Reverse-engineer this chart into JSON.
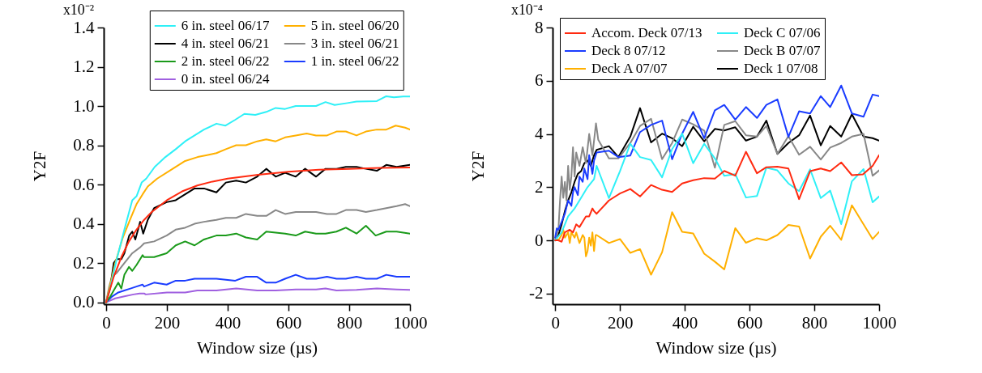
{
  "chart_data": [
    {
      "type": "line",
      "xlabel": "Window size (µs)",
      "ylabel": "Y2F",
      "xlim": [
        -8,
        1000
      ],
      "ylim": [
        -0.01,
        1.4
      ],
      "legend": "top right",
      "annotations": [
        "x10⁻²"
      ],
      "xticks": [
        0,
        200,
        400,
        600,
        800,
        1000
      ],
      "yticks": [
        {
          "value": 0,
          "label": "0.0"
        },
        0.2,
        0.4,
        0.6,
        0.8,
        {
          "value": 1,
          "label": "1.0"
        },
        1.2,
        1.4
      ],
      "series": [
        {
          "name": "6 in. steel 06/17",
          "color": "#2ff0f7",
          "x": [
            0,
            11,
            35,
            60,
            86,
            100,
            117,
            132,
            160,
            195,
            229,
            260,
            291,
            322,
            363,
            392,
            425,
            455,
            491,
            527,
            558,
            589,
            624,
            660,
            691,
            722,
            752,
            794,
            824,
            860,
            891,
            922,
            947,
            978,
            1000
          ],
          "values": [
            0,
            0.06,
            0.22,
            0.37,
            0.52,
            0.54,
            0.61,
            0.63,
            0.69,
            0.74,
            0.78,
            0.82,
            0.85,
            0.88,
            0.91,
            0.9,
            0.93,
            0.96,
            0.955,
            0.97,
            0.99,
            0.985,
            1.0,
            1.0,
            1.0,
            1.02,
            1.005,
            1.015,
            1.023,
            1.024,
            1.025,
            1.05,
            1.044,
            1.049,
            1.049
          ]
        },
        {
          "name": "5 in. steel 06/20",
          "color": "#ffb000",
          "x": [
            0,
            15,
            30,
            55,
            81,
            100,
            120,
            137,
            168,
            219,
            260,
            301,
            332,
            363,
            394,
            428,
            460,
            497,
            527,
            558,
            589,
            624,
            660,
            691,
            727,
            758,
            789,
            824,
            855,
            891,
            922,
            953,
            984,
            1000
          ],
          "values": [
            0,
            0.1,
            0.2,
            0.33,
            0.43,
            0.5,
            0.55,
            0.59,
            0.63,
            0.68,
            0.72,
            0.74,
            0.75,
            0.76,
            0.78,
            0.8,
            0.8,
            0.82,
            0.83,
            0.82,
            0.84,
            0.85,
            0.86,
            0.85,
            0.85,
            0.87,
            0.87,
            0.85,
            0.87,
            0.88,
            0.88,
            0.9,
            0.89,
            0.88
          ]
        },
        {
          "name": "4 in. steel 06/21",
          "color": "#000000",
          "x": [
            0,
            14,
            25,
            35,
            50,
            60,
            76,
            86,
            96,
            112,
            122,
            137,
            158,
            199,
            229,
            260,
            291,
            322,
            363,
            394,
            428,
            460,
            497,
            527,
            558,
            589,
            624,
            655,
            691,
            722,
            758,
            789,
            824,
            855,
            891,
            922,
            956,
            1000
          ],
          "values": [
            0,
            0.08,
            0.2,
            0.22,
            0.22,
            0.25,
            0.34,
            0.36,
            0.32,
            0.41,
            0.35,
            0.42,
            0.48,
            0.51,
            0.52,
            0.55,
            0.58,
            0.58,
            0.56,
            0.61,
            0.62,
            0.61,
            0.64,
            0.68,
            0.64,
            0.66,
            0.64,
            0.68,
            0.64,
            0.68,
            0.68,
            0.69,
            0.69,
            0.68,
            0.67,
            0.7,
            0.69,
            0.7
          ]
        },
        {
          "name": "3 in. steel 06/21",
          "color": "#888888",
          "x": [
            0,
            10,
            19,
            35,
            60,
            86,
            112,
            125,
            158,
            199,
            229,
            260,
            291,
            322,
            363,
            394,
            428,
            460,
            497,
            527,
            558,
            589,
            624,
            660,
            691,
            727,
            758,
            789,
            824,
            855,
            891,
            922,
            956,
            984,
            1000
          ],
          "values": [
            0,
            0.08,
            0.13,
            0.15,
            0.2,
            0.25,
            0.28,
            0.3,
            0.31,
            0.34,
            0.37,
            0.38,
            0.4,
            0.41,
            0.42,
            0.43,
            0.43,
            0.45,
            0.44,
            0.44,
            0.47,
            0.45,
            0.46,
            0.46,
            0.46,
            0.45,
            0.45,
            0.47,
            0.47,
            0.46,
            0.47,
            0.48,
            0.49,
            0.5,
            0.49
          ]
        },
        {
          "name": "2 in. steel 06/22",
          "color": "#1a9a1a",
          "x": [
            0,
            14,
            25,
            40,
            50,
            60,
            75,
            86,
            100,
            112,
            120,
            125,
            158,
            199,
            229,
            260,
            291,
            322,
            363,
            394,
            428,
            460,
            497,
            527,
            589,
            624,
            655,
            691,
            722,
            758,
            789,
            824,
            855,
            887,
            922,
            956,
            1000
          ],
          "values": [
            0,
            0.03,
            0.06,
            0.1,
            0.07,
            0.14,
            0.18,
            0.16,
            0.19,
            0.22,
            0.24,
            0.23,
            0.23,
            0.25,
            0.29,
            0.31,
            0.29,
            0.32,
            0.34,
            0.34,
            0.35,
            0.33,
            0.32,
            0.36,
            0.35,
            0.34,
            0.36,
            0.35,
            0.35,
            0.36,
            0.38,
            0.35,
            0.39,
            0.34,
            0.36,
            0.36,
            0.35
          ]
        },
        {
          "name": "1 in. steel 06/22",
          "color": "#1a3cff",
          "x": [
            0,
            20,
            40,
            60,
            80,
            100,
            120,
            125,
            158,
            199,
            229,
            260,
            291,
            363,
            425,
            460,
            497,
            527,
            558,
            589,
            624,
            660,
            691,
            727,
            758,
            789,
            824,
            855,
            891,
            922,
            956,
            1000
          ],
          "values": [
            0,
            0.03,
            0.05,
            0.06,
            0.07,
            0.08,
            0.09,
            0.08,
            0.1,
            0.09,
            0.11,
            0.11,
            0.12,
            0.12,
            0.11,
            0.13,
            0.13,
            0.1,
            0.1,
            0.12,
            0.14,
            0.12,
            0.12,
            0.13,
            0.12,
            0.12,
            0.13,
            0.12,
            0.12,
            0.14,
            0.13,
            0.13
          ]
        },
        {
          "name": "0 in. steel 06/24",
          "color": "#a060e0",
          "x": [
            0,
            30,
            60,
            90,
            110,
            125,
            130,
            200,
            260,
            300,
            363,
            428,
            497,
            558,
            624,
            691,
            722,
            758,
            824,
            891,
            956,
            1000
          ],
          "values": [
            0,
            0.02,
            0.03,
            0.04,
            0.045,
            0.045,
            0.04,
            0.05,
            0.05,
            0.06,
            0.06,
            0.07,
            0.06,
            0.06,
            0.065,
            0.065,
            0.07,
            0.06,
            0.063,
            0.07,
            0.065,
            0.063
          ]
        },
        {
          "color": "#ff2a10",
          "x": [
            0,
            25,
            50,
            75,
            100,
            125,
            150,
            200,
            250,
            300,
            350,
            400,
            500,
            600,
            700,
            800,
            900,
            1000
          ],
          "values": [
            0,
            0.13,
            0.23,
            0.31,
            0.37,
            0.42,
            0.46,
            0.52,
            0.565,
            0.595,
            0.615,
            0.63,
            0.65,
            0.665,
            0.675,
            0.68,
            0.685,
            0.687
          ]
        }
      ]
    },
    {
      "type": "line",
      "xlabel": "Window size (µs)",
      "ylabel": "Y2F",
      "xlim": [
        -8,
        1000
      ],
      "ylim": [
        -2.4,
        8
      ],
      "legend": "top left",
      "annotations": [
        "x10⁻⁴"
      ],
      "xticks": [
        0,
        200,
        400,
        600,
        800,
        1000
      ],
      "yticks": [
        -2,
        0,
        2,
        4,
        6,
        8
      ],
      "series": [
        {
          "name": "Accom. Deck 07/13",
          "color": "#ff2a10",
          "x": [
            0,
            10,
            20,
            30,
            45,
            55,
            65,
            75,
            85,
            95,
            105,
            115,
            120,
            128,
            166,
            200,
            232,
            262,
            296,
            330,
            361,
            392,
            426,
            460,
            493,
            522,
            556,
            589,
            623,
            652,
            686,
            720,
            753,
            787,
            820,
            849,
            883,
            916,
            950,
            980,
            1000
          ],
          "values": [
            0,
            0,
            -0.05,
            0.3,
            0.4,
            0.3,
            0.6,
            0.5,
            0.7,
            0.9,
            0.9,
            1.2,
            1.1,
            1.0,
            1.5,
            1.76,
            1.93,
            1.65,
            2.08,
            1.9,
            1.82,
            2.14,
            2.26,
            2.34,
            2.32,
            2.61,
            2.43,
            3.33,
            2.52,
            2.75,
            2.77,
            2.7,
            1.55,
            2.6,
            2.7,
            2.6,
            2.93,
            2.45,
            2.48,
            2.8,
            3.2
          ]
        },
        {
          "name": "Deck C 07/06",
          "color": "#2ff0f7",
          "x": [
            0,
            20,
            40,
            60,
            80,
            100,
            120,
            128,
            166,
            200,
            232,
            262,
            296,
            330,
            361,
            392,
            426,
            460,
            493,
            522,
            556,
            589,
            623,
            652,
            686,
            720,
            753,
            787,
            820,
            849,
            883,
            916,
            952,
            980,
            1000
          ],
          "values": [
            0,
            0.3,
            0.9,
            1.2,
            1.6,
            2.0,
            2.3,
            2.8,
            1.59,
            2.6,
            3.63,
            3.13,
            3.02,
            2.37,
            3.43,
            4.01,
            2.9,
            3.63,
            3.08,
            2.43,
            2.49,
            1.61,
            1.67,
            2.73,
            2.63,
            2.14,
            1.85,
            2.67,
            1.59,
            1.87,
            0.61,
            2.22,
            2.68,
            1.43,
            1.65
          ]
        },
        {
          "name": "Deck 8 07/12",
          "color": "#1a3cff",
          "x": [
            0,
            5,
            10,
            20,
            30,
            40,
            50,
            55,
            60,
            70,
            75,
            85,
            90,
            100,
            105,
            115,
            120,
            128,
            166,
            195,
            232,
            262,
            296,
            330,
            361,
            392,
            426,
            460,
            493,
            522,
            556,
            589,
            623,
            652,
            686,
            720,
            753,
            787,
            820,
            849,
            883,
            916,
            952,
            980,
            1000
          ],
          "values": [
            0.1,
            0.45,
            0.4,
            0.7,
            1.0,
            1.5,
            1.3,
            1.8,
            2.0,
            1.7,
            2.4,
            2.2,
            2.7,
            2.3,
            3.2,
            2.5,
            3.0,
            3.3,
            3.37,
            3.13,
            3.19,
            4.07,
            4.34,
            4.5,
            3.05,
            4.01,
            4.83,
            3.84,
            4.89,
            5.09,
            4.54,
            5.01,
            4.6,
            5.09,
            5.3,
            3.89,
            4.85,
            4.77,
            5.42,
            5.01,
            5.82,
            4.77,
            4.65,
            5.48,
            5.42
          ]
        },
        {
          "name": "Deck B 07/07",
          "color": "#888888",
          "x": [
            0,
            10,
            15,
            20,
            25,
            30,
            35,
            40,
            45,
            50,
            55,
            60,
            65,
            75,
            85,
            95,
            105,
            115,
            126,
            133,
            166,
            195,
            232,
            262,
            296,
            330,
            361,
            392,
            426,
            460,
            493,
            522,
            556,
            589,
            623,
            652,
            686,
            720,
            753,
            787,
            820,
            849,
            883,
            916,
            952,
            980,
            1000
          ],
          "values": [
            0,
            0.4,
            1.5,
            2.4,
            1.6,
            2.2,
            1.5,
            2.8,
            1.9,
            2.4,
            3.5,
            2.4,
            3.3,
            2.8,
            3.5,
            2.9,
            4.0,
            3.2,
            4.4,
            3.78,
            3.08,
            3.08,
            3.66,
            4.3,
            4.57,
            3.05,
            3.66,
            4.54,
            4.36,
            4.13,
            2.73,
            4.34,
            4.48,
            3.95,
            3.9,
            4.3,
            3.25,
            3.92,
            3.22,
            3.52,
            3.04,
            3.49,
            3.66,
            3.9,
            4.0,
            2.43,
            2.63
          ]
        },
        {
          "name": "Deck A 07/07",
          "color": "#ffb000",
          "x": [
            0,
            10,
            20,
            25,
            30,
            40,
            45,
            50,
            60,
            65,
            75,
            85,
            90,
            95,
            100,
            105,
            110,
            115,
            120,
            125,
            128,
            166,
            200,
            232,
            262,
            296,
            330,
            361,
            392,
            426,
            460,
            493,
            522,
            556,
            589,
            623,
            652,
            686,
            720,
            753,
            787,
            820,
            849,
            883,
            916,
            952,
            980,
            1000
          ],
          "values": [
            0.1,
            0,
            0.2,
            0.4,
            0.1,
            0.3,
            -0.1,
            0.3,
            0.1,
            0.3,
            -0.1,
            0.2,
            0.1,
            -0.6,
            -0.4,
            0.1,
            -0.2,
            0.3,
            -0.4,
            0.2,
            0.2,
            -0.1,
            0.05,
            -0.47,
            -0.33,
            -1.29,
            -0.45,
            1.06,
            0.32,
            0.26,
            -0.5,
            -0.8,
            -1.09,
            0.46,
            -0.09,
            0.08,
            0,
            0.2,
            0.58,
            0.52,
            -0.68,
            0.14,
            0.55,
            0.02,
            1.32,
            0.6,
            0.05,
            0.32
          ]
        },
        {
          "name": "Deck 1 07/08",
          "color": "#000000",
          "x": [
            0,
            10,
            20,
            30,
            40,
            50,
            60,
            70,
            80,
            90,
            100,
            110,
            120,
            128,
            166,
            195,
            232,
            262,
            296,
            330,
            361,
            392,
            426,
            460,
            493,
            522,
            556,
            589,
            623,
            652,
            686,
            720,
            753,
            787,
            820,
            849,
            883,
            916,
            952,
            980,
            1000
          ],
          "values": [
            0,
            0.2,
            0.6,
            1.1,
            1.5,
            1.8,
            2.2,
            2.5,
            2.6,
            2.9,
            3.0,
            2.8,
            3.2,
            3.4,
            3.54,
            3.13,
            3.9,
            4.97,
            3.68,
            4.01,
            3.84,
            3.54,
            4.27,
            3.72,
            4.19,
            4.13,
            4.25,
            3.75,
            3.9,
            4.5,
            3.25,
            3.66,
            3.95,
            4.69,
            3.57,
            4.3,
            3.9,
            4.74,
            3.9,
            3.84,
            3.75
          ]
        }
      ]
    }
  ]
}
